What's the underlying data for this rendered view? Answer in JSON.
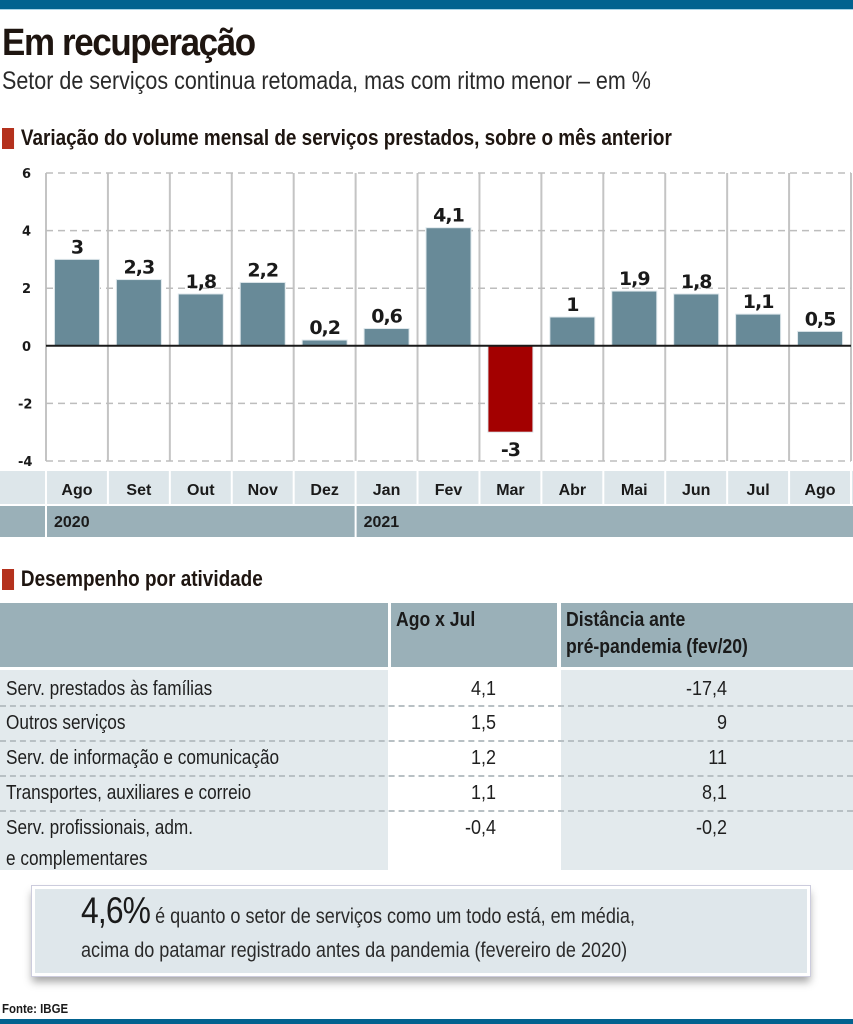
{
  "header": {
    "title": "Em recuperação",
    "subtitle": "Setor de serviços continua retomada, mas com ritmo menor – em %"
  },
  "chart_section": {
    "heading": "Variação do volume mensal de serviços prestados, sobre o mês anterior"
  },
  "chart_data": {
    "type": "bar",
    "title": "Variação do volume mensal de serviços prestados, sobre o mês anterior",
    "xlabel": "",
    "ylabel": "%",
    "ylim": [
      -4,
      6
    ],
    "yticks": [
      6,
      4,
      2,
      0,
      -2,
      -4
    ],
    "ytick_labels": [
      "6",
      "4",
      "2",
      "0",
      "-2",
      "-4"
    ],
    "grid": true,
    "categories": [
      "Ago",
      "Set",
      "Out",
      "Nov",
      "Dez",
      "Jan",
      "Fev",
      "Mar",
      "Abr",
      "Mai",
      "Jun",
      "Jul",
      "Ago"
    ],
    "years": [
      {
        "label": "2020",
        "start_index": 0
      },
      {
        "label": "2021",
        "start_index": 5
      }
    ],
    "values": [
      3,
      2.3,
      1.8,
      2.2,
      0.2,
      0.6,
      4.1,
      -3,
      1,
      1.9,
      1.8,
      1.1,
      0.5
    ],
    "value_labels": [
      "3",
      "2,3",
      "1,8",
      "2,2",
      "0,2",
      "0,6",
      "4,1",
      "-3",
      "1",
      "1,9",
      "1,8",
      "1,1",
      "0,5"
    ],
    "colors": {
      "positive": "#688a98",
      "negative": "#a30000"
    }
  },
  "table_section": {
    "heading": "Desempenho por atividade",
    "columns": [
      "",
      "Ago x Jul",
      "Distância ante",
      "pré-pandemia (fev/20)"
    ],
    "rows": [
      {
        "label": "Serv. prestados às famílias",
        "label2": "",
        "ago_x_jul": "4,1",
        "dist": "-17,4"
      },
      {
        "label": "Outros serviços",
        "label2": "",
        "ago_x_jul": "1,5",
        "dist": "9"
      },
      {
        "label": "Serv. de informação e comunicação",
        "label2": "",
        "ago_x_jul": "1,2",
        "dist": "11"
      },
      {
        "label": "Transportes, auxiliares e correio",
        "label2": "",
        "ago_x_jul": "1,1",
        "dist": "8,1"
      },
      {
        "label": "Serv. profissionais, adm.",
        "label2": "e complementares",
        "ago_x_jul": "-0,4",
        "dist": "-0,2"
      }
    ]
  },
  "callout": {
    "big": "4,6%",
    "line1": " é quanto o setor de serviços como um todo está, em média,",
    "line2": "acima do patamar registrado antes da pandemia (fevereiro de 2020)"
  },
  "footer": {
    "source": "Fonte: IBGE"
  },
  "colors": {
    "brand_bar": "#02628f",
    "accent_square": "#b4311d",
    "header_cell": "#9ab0b8",
    "row_bg": "#e3eaed"
  }
}
